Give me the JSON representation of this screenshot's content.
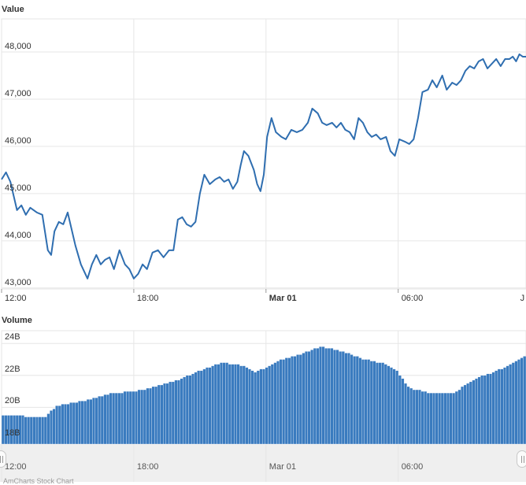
{
  "panels": {
    "price_title": "Value",
    "volume_title": "Volume"
  },
  "colors": {
    "line": "#2f6eb0",
    "bar": "#3a7bbf",
    "grid": "#e6e6e6",
    "navigator_bg": "#efefef"
  },
  "navigator": {
    "x_labels": [
      "12:00",
      "18:00",
      "Mar 01",
      "06:00"
    ]
  },
  "credit_text": "AmCharts Stock Chart",
  "chart_data": [
    {
      "type": "line",
      "title": "Value",
      "xlabel": "",
      "ylabel": "",
      "ylim": [
        42980,
        48700
      ],
      "xlim": [
        0,
        23.8
      ],
      "x_tick_positions": [
        0,
        6,
        12,
        18,
        23.75
      ],
      "x_tick_labels": [
        "12:00",
        "18:00",
        "Mar 01",
        "06:00",
        "J"
      ],
      "x_tick_bold": [
        false,
        false,
        true,
        false,
        false
      ],
      "y_ticks": [
        43000,
        44000,
        45000,
        46000,
        47000,
        48000
      ],
      "y_tick_labels": [
        "43,000",
        "44,000",
        "45,000",
        "46,000",
        "47,000",
        "48,000"
      ],
      "x_unit": "hours since 12:00",
      "x": [
        0,
        0.2,
        0.4,
        0.55,
        0.7,
        0.9,
        1.1,
        1.3,
        1.6,
        1.85,
        2.1,
        2.25,
        2.4,
        2.6,
        2.8,
        3.0,
        3.15,
        3.35,
        3.6,
        3.9,
        4.1,
        4.3,
        4.5,
        4.7,
        4.9,
        5.1,
        5.35,
        5.6,
        5.8,
        6.0,
        6.2,
        6.4,
        6.6,
        6.85,
        7.1,
        7.35,
        7.6,
        7.8,
        8.0,
        8.2,
        8.4,
        8.6,
        8.8,
        9.0,
        9.2,
        9.45,
        9.7,
        9.9,
        10.1,
        10.3,
        10.5,
        10.7,
        10.85,
        11.0,
        11.2,
        11.45,
        11.6,
        11.75,
        11.9,
        12.05,
        12.25,
        12.45,
        12.7,
        12.9,
        13.15,
        13.4,
        13.65,
        13.9,
        14.1,
        14.35,
        14.55,
        14.75,
        15.0,
        15.2,
        15.4,
        15.6,
        15.8,
        16.0,
        16.2,
        16.4,
        16.6,
        16.8,
        17.0,
        17.2,
        17.45,
        17.65,
        17.85,
        18.05,
        18.3,
        18.5,
        18.7,
        18.9,
        19.1,
        19.35,
        19.55,
        19.75,
        20.0,
        20.2,
        20.45,
        20.65,
        20.85,
        21.05,
        21.25,
        21.45,
        21.65,
        21.85,
        22.05,
        22.25,
        22.45,
        22.65,
        22.85,
        23.05,
        23.2,
        23.35,
        23.5,
        23.65,
        23.8
      ],
      "values": [
        45300,
        45450,
        45250,
        44950,
        44650,
        44750,
        44550,
        44700,
        44600,
        44550,
        43800,
        43700,
        44200,
        44400,
        44350,
        44600,
        44300,
        43900,
        43500,
        43200,
        43500,
        43700,
        43500,
        43600,
        43650,
        43400,
        43800,
        43500,
        43400,
        43200,
        43300,
        43500,
        43400,
        43750,
        43800,
        43650,
        43800,
        43800,
        44450,
        44500,
        44350,
        44300,
        44400,
        45000,
        45400,
        45200,
        45300,
        45350,
        45250,
        45300,
        45100,
        45250,
        45600,
        45900,
        45800,
        45500,
        45200,
        45050,
        45400,
        46200,
        46600,
        46300,
        46200,
        46150,
        46350,
        46300,
        46350,
        46500,
        46800,
        46700,
        46500,
        46450,
        46500,
        46400,
        46500,
        46350,
        46300,
        46150,
        46600,
        46500,
        46300,
        46200,
        46250,
        46150,
        46200,
        45900,
        45800,
        46150,
        46100,
        46050,
        46150,
        46600,
        47150,
        47200,
        47400,
        47250,
        47500,
        47200,
        47350,
        47300,
        47400,
        47600,
        47700,
        47650,
        47800,
        47850,
        47650,
        47750,
        47850,
        47700,
        47850,
        47850,
        47900,
        47800,
        47950,
        47900,
        47900
      ]
    },
    {
      "type": "bar",
      "title": "Volume",
      "xlabel": "",
      "ylabel": "",
      "ylim": [
        17700000000,
        24800000000
      ],
      "xlim": [
        0,
        23.8
      ],
      "y_ticks": [
        18000000000,
        20000000000,
        22000000000,
        24000000000
      ],
      "y_tick_labels": [
        "18B",
        "20B",
        "22B",
        "24B"
      ],
      "x_unit": "hours since 12:00",
      "x": [
        0,
        2,
        2.5,
        4,
        5,
        6,
        7,
        8,
        9,
        10,
        11,
        11.5,
        12,
        12.5,
        13.5,
        14.5,
        15.5,
        16.5,
        17.5,
        18,
        18.5,
        19.5,
        20.5,
        21.5,
        22.5,
        23.5,
        23.8
      ],
      "values": [
        19500000000,
        19400000000,
        20100000000,
        20500000000,
        20900000000,
        21000000000,
        21300000000,
        21700000000,
        22300000000,
        22800000000,
        22600000000,
        22200000000,
        22500000000,
        22900000000,
        23300000000,
        23800000000,
        23500000000,
        23000000000,
        22700000000,
        22200000000,
        21200000000,
        20900000000,
        20900000000,
        21800000000,
        22300000000,
        23000000000,
        23200000000
      ]
    }
  ]
}
